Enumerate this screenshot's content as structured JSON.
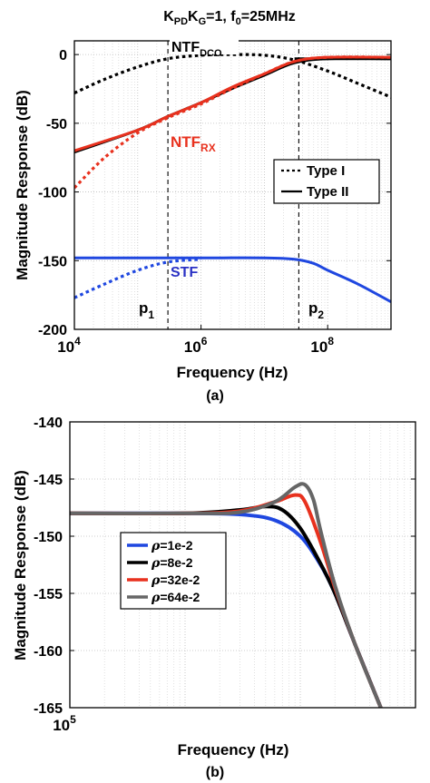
{
  "chart_data": [
    {
      "panel": "(a)",
      "type": "line",
      "title_main": "K",
      "title_sub1": "PD",
      "title_mid": "K",
      "title_sub2": "G",
      "title_rest": "=1, f",
      "title_sub3": "0",
      "title_end": "=25MHz",
      "xlabel": "Frequency (Hz)",
      "ylabel": "Magnitude Response (dB)",
      "xscale": "log",
      "xlim": [
        10000,
        1000000000
      ],
      "ylim": [
        -200,
        10
      ],
      "x_ticks": [
        {
          "base": "10",
          "exp": "4",
          "value": 10000
        },
        {
          "base": "10",
          "exp": "6",
          "value": 1000000
        },
        {
          "base": "10",
          "exp": "8",
          "value": 100000000
        }
      ],
      "y_ticks": [
        "0",
        "-50",
        "-100",
        "-150",
        "-200"
      ],
      "y_tick_values": [
        0,
        -50,
        -100,
        -150,
        -200
      ],
      "grid": true,
      "legend_position": "right",
      "legend": [
        {
          "label": "Type I",
          "style": "dotted"
        },
        {
          "label": "Type II",
          "style": "solid"
        }
      ],
      "annotations": {
        "ntf_dco_main": "NTF",
        "ntf_dco_sub": "DCO",
        "ntf_rx_main": "NTF",
        "ntf_rx_sub": "RX",
        "stf": "STF",
        "p1_main": "p",
        "p1_sub": "1",
        "p2_main": "p",
        "p2_sub": "2"
      },
      "markers": {
        "p1": 300000,
        "p2": 35000000
      },
      "series": [
        {
          "label_ref": "NTF_DCO",
          "style": "dotted",
          "color": "#000000",
          "x": [
            10000,
            30000,
            100000,
            300000,
            1000000,
            3000000,
            10000000,
            30000000,
            100000000,
            300000000,
            1000000000
          ],
          "y": [
            -28,
            -18,
            -9,
            -3,
            -0.5,
            0,
            -0.5,
            -4,
            -12,
            -21,
            -31
          ]
        },
        {
          "label_ref": "NTF_DCO",
          "style": "solid",
          "color": "#000000",
          "x": [
            30000000,
            100000000,
            300000000,
            1000000000
          ],
          "y": [
            -3,
            -3,
            -3,
            -3
          ]
        },
        {
          "label_ref": "NTF_RX",
          "style": "solid",
          "color": "#000000",
          "x": [
            10000,
            100000,
            300000,
            1000000,
            3000000,
            10000000,
            30000000,
            100000000,
            1000000000
          ],
          "y": [
            -71,
            -55,
            -45,
            -35,
            -25,
            -15,
            -6,
            -3,
            -3
          ]
        },
        {
          "label_ref": "NTF_RX",
          "style": "dotted",
          "color": "#e8311e",
          "x": [
            10000,
            30000,
            100000,
            300000,
            1000000,
            3000000,
            10000000,
            30000000,
            100000000,
            1000000000
          ],
          "y": [
            -97,
            -75,
            -57,
            -46,
            -36,
            -25,
            -14,
            -5,
            -2,
            -2
          ]
        },
        {
          "label_ref": "NTF_RX",
          "style": "solid",
          "color": "#e8311e",
          "x": [
            10000,
            100000,
            300000,
            1000000,
            3000000,
            10000000,
            30000000,
            100000000,
            1000000000
          ],
          "y": [
            -70,
            -55,
            -45,
            -35,
            -24,
            -14,
            -5,
            -2,
            -2
          ]
        },
        {
          "label_ref": "STF",
          "style": "dotted",
          "color": "#1f47e0",
          "x": [
            10000,
            30000,
            100000,
            300000,
            1000000
          ],
          "y": [
            -177,
            -167,
            -157,
            -151,
            -149
          ]
        },
        {
          "label_ref": "STF",
          "style": "solid",
          "color": "#1f47e0",
          "x": [
            10000,
            100000,
            1000000,
            10000000,
            30000000,
            60000000,
            100000000,
            300000000,
            1000000000
          ],
          "y": [
            -148,
            -148,
            -148,
            -148,
            -149,
            -152,
            -157,
            -167,
            -180
          ]
        }
      ]
    },
    {
      "panel": "(b)",
      "type": "line",
      "xlabel": "Frequency (Hz)",
      "ylabel": "Magnitude Response (dB)",
      "xscale": "log",
      "xlim": [
        100000,
        100000000
      ],
      "ylim": [
        -165,
        -140
      ],
      "x_ticks": [
        {
          "base": "10",
          "exp": "5",
          "value": 100000
        }
      ],
      "y_ticks": [
        "-140",
        "-145",
        "-150",
        "-155",
        "-160",
        "-165"
      ],
      "y_tick_values": [
        -140,
        -145,
        -150,
        -155,
        -160,
        -165
      ],
      "grid": true,
      "legend_position": "center-left",
      "series": [
        {
          "name": "ρ=1e-2",
          "legend_sym": "ρ",
          "legend_val": "=1e-2",
          "color": "#1f47e0",
          "x": [
            100000,
            1000000,
            3000000,
            6000000,
            10000000,
            15000000,
            20000000,
            30000000,
            50000000
          ],
          "y": [
            -148,
            -148,
            -148.1,
            -148.6,
            -150,
            -152.5,
            -155,
            -159.5,
            -165
          ]
        },
        {
          "name": "ρ=8e-2",
          "legend_sym": "ρ",
          "legend_val": "=8e-2",
          "color": "#000000",
          "x": [
            100000,
            1000000,
            3000000,
            5000000,
            7000000,
            10000000,
            15000000,
            20000000,
            30000000,
            50000000
          ],
          "y": [
            -148,
            -148,
            -147.7,
            -147.4,
            -147.7,
            -149.3,
            -152.4,
            -155,
            -159.5,
            -165
          ]
        },
        {
          "name": "ρ=32e-2",
          "legend_sym": "ρ",
          "legend_val": "=32e-2",
          "color": "#e8311e",
          "x": [
            100000,
            1000000,
            3000000,
            6000000,
            9000000,
            11000000,
            15000000,
            20000000,
            30000000,
            50000000
          ],
          "y": [
            -148,
            -148,
            -147.8,
            -147,
            -146.4,
            -147,
            -150.5,
            -154.5,
            -159.5,
            -165
          ]
        },
        {
          "name": "ρ=64e-2",
          "legend_sym": "ρ",
          "legend_val": "=64e-2",
          "color": "#666666",
          "x": [
            100000,
            1000000,
            3000000,
            6000000,
            9000000,
            11000000,
            13000000,
            15000000,
            20000000,
            30000000,
            50000000
          ],
          "y": [
            -148,
            -148,
            -147.9,
            -147,
            -145.7,
            -145.5,
            -146.8,
            -149.5,
            -154.3,
            -159.5,
            -165
          ]
        }
      ]
    }
  ]
}
